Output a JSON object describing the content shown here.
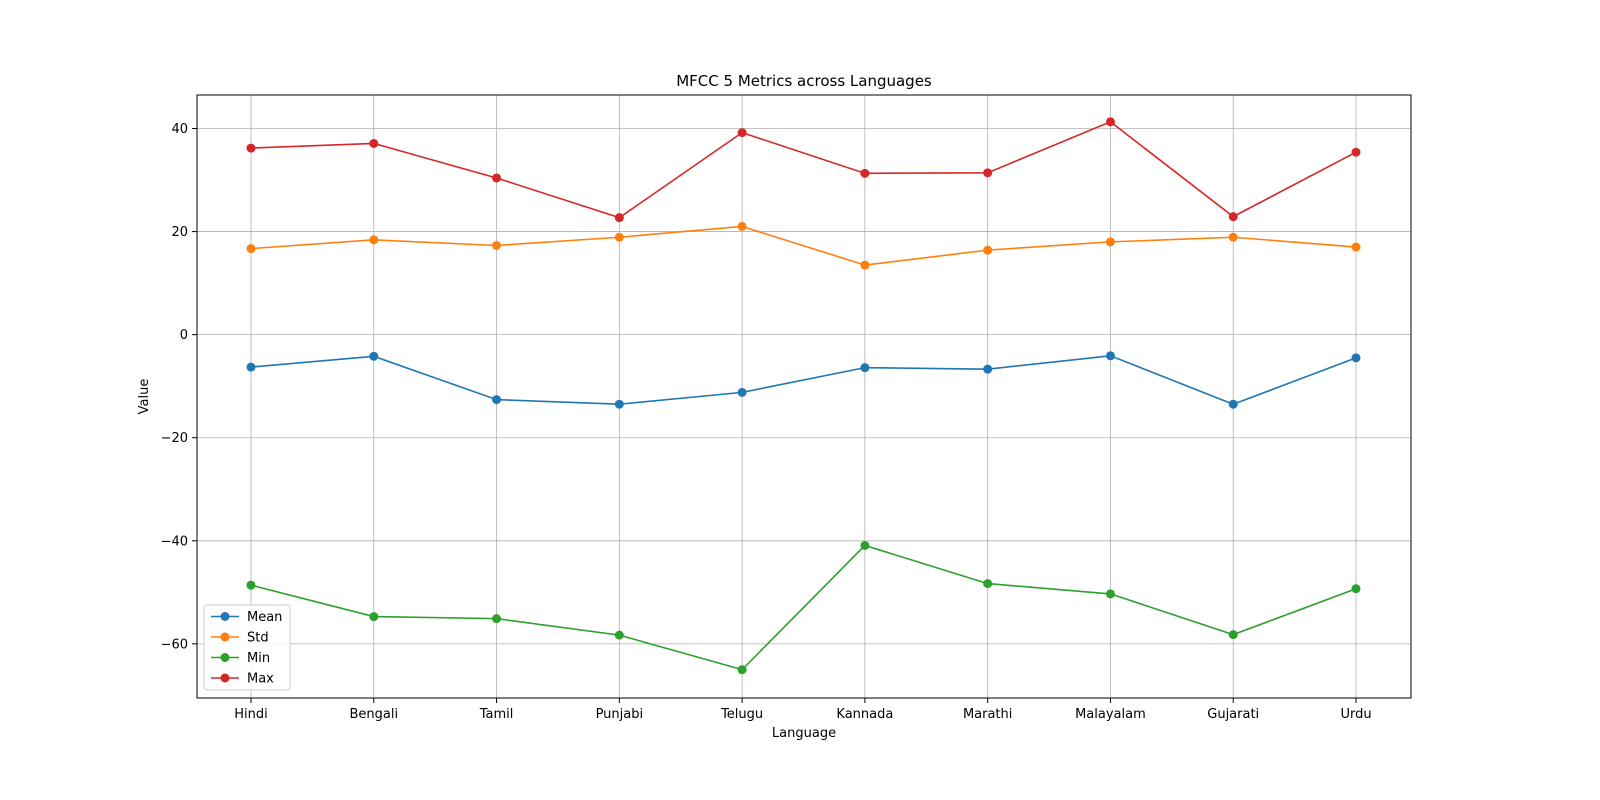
{
  "chart_data": {
    "type": "line",
    "title": "MFCC 5 Metrics across Languages",
    "xlabel": "Language",
    "ylabel": "Value",
    "categories": [
      "Hindi",
      "Bengali",
      "Tamil",
      "Punjabi",
      "Telugu",
      "Kannada",
      "Marathi",
      "Malayalam",
      "Gujarati",
      "Urdu"
    ],
    "ylim": [
      -70.5,
      46.5
    ],
    "yticks": [
      -60,
      -40,
      -20,
      0,
      20,
      40
    ],
    "grid": true,
    "legend_position": "lower-left",
    "series": [
      {
        "name": "Mean",
        "color": "#1f77b4",
        "values": [
          -6.3,
          -4.2,
          -12.6,
          -13.5,
          -11.2,
          -6.4,
          -6.7,
          -4.1,
          -13.5,
          -4.5
        ]
      },
      {
        "name": "Std",
        "color": "#ff7f0e",
        "values": [
          16.7,
          18.4,
          17.3,
          18.9,
          21.0,
          13.5,
          16.4,
          18.0,
          18.9,
          17.0
        ]
      },
      {
        "name": "Min",
        "color": "#2ca02c",
        "values": [
          -48.6,
          -54.7,
          -55.1,
          -58.3,
          -65.0,
          -40.9,
          -48.3,
          -50.3,
          -58.2,
          -49.3
        ]
      },
      {
        "name": "Max",
        "color": "#d62728",
        "values": [
          36.2,
          37.1,
          30.4,
          22.7,
          39.2,
          31.3,
          31.4,
          41.3,
          22.9,
          35.4
        ]
      }
    ]
  }
}
